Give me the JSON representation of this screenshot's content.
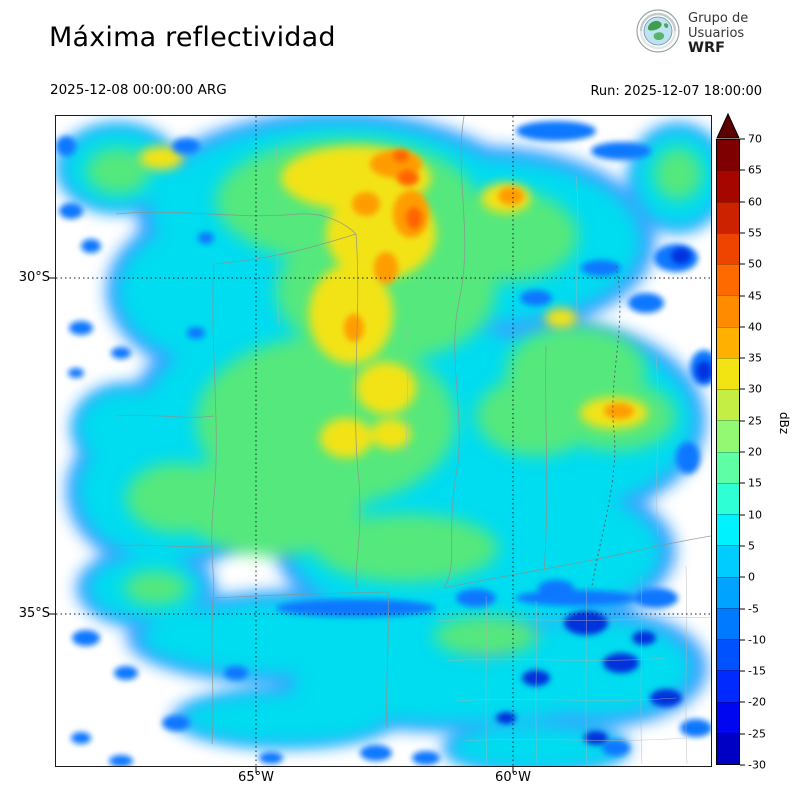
{
  "header": {
    "title": "Máxima reflectividad",
    "logo": {
      "line1": "Grupo de",
      "line2": "Usuarios",
      "line3": "WRF"
    }
  },
  "datetime_bar": {
    "valid_time": "2025-12-08 00:00:00 ARG",
    "run_label": "Run: 2025-12-07 18:00:00"
  },
  "map": {
    "lat_ticks": [
      {
        "label": "30°S",
        "frac": 0.249
      },
      {
        "label": "35°S",
        "frac": 0.766
      }
    ],
    "lon_ticks": [
      {
        "label": "65°W",
        "frac": 0.305
      },
      {
        "label": "60°W",
        "frac": 0.698
      }
    ]
  },
  "colorbar": {
    "unit": "dBz",
    "min": -30,
    "max": 70,
    "tick_step": 5,
    "ticks": [
      70,
      65,
      60,
      55,
      50,
      45,
      40,
      35,
      30,
      25,
      20,
      15,
      10,
      5,
      0,
      -5,
      -10,
      -15,
      -20,
      -25,
      -30
    ],
    "over_arrow_color": "#5c0000",
    "segments_top_to_bottom": [
      {
        "from": 65,
        "to": 70,
        "color": "#7f0000"
      },
      {
        "from": 60,
        "to": 65,
        "color": "#a50700"
      },
      {
        "from": 55,
        "to": 60,
        "color": "#cc2200"
      },
      {
        "from": 50,
        "to": 55,
        "color": "#ef4400"
      },
      {
        "from": 45,
        "to": 50,
        "color": "#ff6a00"
      },
      {
        "from": 40,
        "to": 45,
        "color": "#ff8c00"
      },
      {
        "from": 35,
        "to": 40,
        "color": "#ffb000"
      },
      {
        "from": 30,
        "to": 35,
        "color": "#f2e313"
      },
      {
        "from": 25,
        "to": 30,
        "color": "#c5ee45"
      },
      {
        "from": 20,
        "to": 25,
        "color": "#93f973"
      },
      {
        "from": 15,
        "to": 20,
        "color": "#5effa4"
      },
      {
        "from": 10,
        "to": 15,
        "color": "#2fffd5"
      },
      {
        "from": 5,
        "to": 10,
        "color": "#00f2ff"
      },
      {
        "from": 0,
        "to": 5,
        "color": "#00ccff"
      },
      {
        "from": -5,
        "to": 0,
        "color": "#00a3ff"
      },
      {
        "from": -10,
        "to": -5,
        "color": "#007aff"
      },
      {
        "from": -15,
        "to": -10,
        "color": "#0052ff"
      },
      {
        "from": -20,
        "to": -15,
        "color": "#002aff"
      },
      {
        "from": -25,
        "to": -20,
        "color": "#0007f0"
      },
      {
        "from": -30,
        "to": -25,
        "color": "#0000c4"
      }
    ]
  },
  "chart_data": {
    "type": "heatmap",
    "title": "Máxima reflectividad",
    "units": "dBz",
    "value_range": [
      -30,
      70
    ],
    "lat_labels": [
      "30°S",
      "35°S"
    ],
    "lon_labels": [
      "65°W",
      "60°W"
    ]
  }
}
